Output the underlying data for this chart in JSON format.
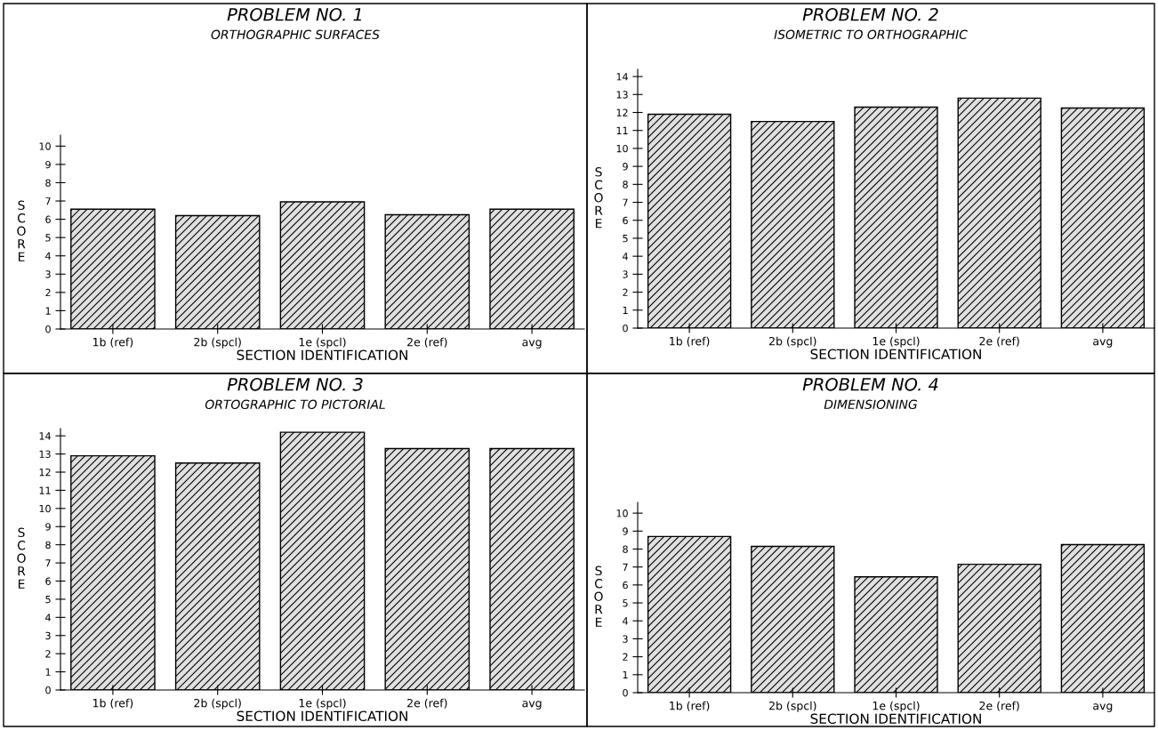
{
  "chart_data": [
    {
      "type": "bar",
      "title": "PROBLEM NO. 1",
      "subtitle": "ORTHOGRAPHIC SURFACES",
      "xlabel": "SECTION IDENTIFICATION",
      "ylabel": "SCORE",
      "categories": [
        "1b (ref)",
        "2b (spcl)",
        "1e (spcl)",
        "2e (ref)",
        "avg"
      ],
      "values": [
        6.55,
        6.2,
        6.95,
        6.25,
        6.55
      ],
      "color": "#000000",
      "ylim": [
        0,
        10.6
      ],
      "yticks": [
        0,
        1,
        2,
        3,
        4,
        5,
        6,
        7,
        8,
        9,
        10
      ],
      "grid": false,
      "legend": false
    },
    {
      "type": "bar",
      "title": "PROBLEM NO. 2",
      "subtitle": "ISOMETRIC TO ORTHOGRAPHIC",
      "xlabel": "SECTION IDENTIFICATION",
      "ylabel": "SCORE",
      "categories": [
        "1b (ref)",
        "2b (spcl)",
        "1e (spcl)",
        "2e (ref)",
        "avg"
      ],
      "values": [
        11.9,
        11.5,
        12.3,
        12.8,
        12.25
      ],
      "color": "#000000",
      "ylim": [
        0,
        14.4
      ],
      "yticks": [
        0,
        1,
        2,
        3,
        4,
        5,
        6,
        7,
        8,
        9,
        10,
        11,
        12,
        13,
        14
      ],
      "grid": false,
      "legend": false
    },
    {
      "type": "bar",
      "title": "PROBLEM NO. 3",
      "subtitle": "ORTOGRAPHIC TO PICTORIAL",
      "xlabel": "SECTION IDENTIFICATION",
      "ylabel": "SCORE",
      "categories": [
        "1b (ref)",
        "2b (spcl)",
        "1e (spcl)",
        "2e (ref)",
        "avg"
      ],
      "values": [
        12.9,
        12.5,
        14.2,
        13.3,
        13.3
      ],
      "color": "#000000",
      "ylim": [
        0,
        14.4
      ],
      "yticks": [
        0,
        1,
        2,
        3,
        4,
        5,
        6,
        7,
        8,
        9,
        10,
        11,
        12,
        13,
        14
      ],
      "grid": false,
      "legend": false
    },
    {
      "type": "bar",
      "title": "PROBLEM NO. 4",
      "subtitle": "DIMENSIONING",
      "xlabel": "SECTION IDENTIFICATION",
      "ylabel": "SCORE",
      "categories": [
        "1b (ref)",
        "2b (spcl)",
        "1e (spcl)",
        "2e (ref)",
        "avg"
      ],
      "values": [
        8.7,
        8.15,
        6.45,
        7.15,
        8.25
      ],
      "color": "#000000",
      "ylim": [
        0,
        10.6
      ],
      "yticks": [
        0,
        1,
        2,
        3,
        4,
        5,
        6,
        7,
        8,
        9,
        10
      ],
      "grid": false,
      "legend": false
    }
  ]
}
